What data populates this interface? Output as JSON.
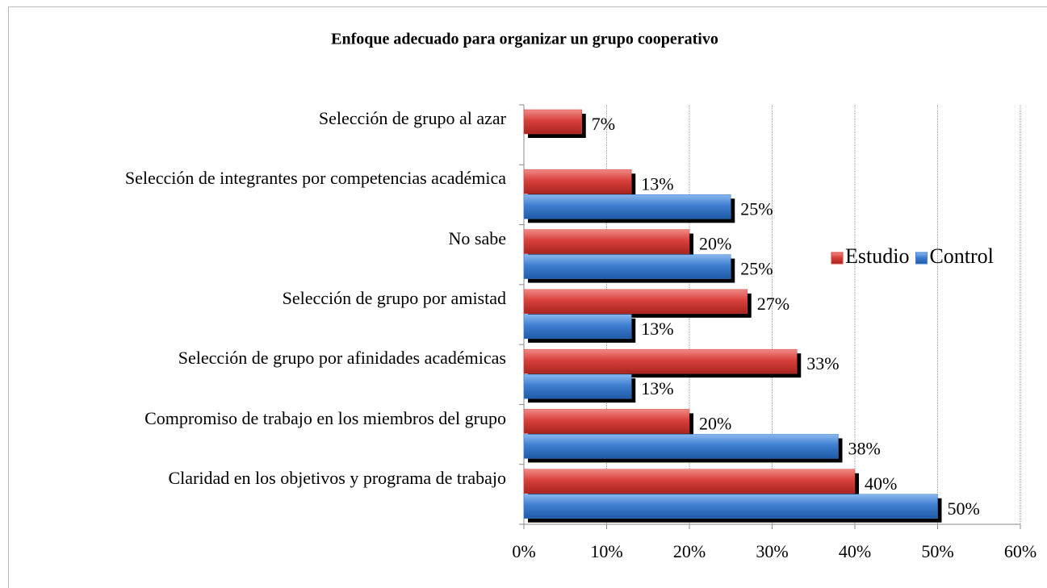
{
  "chart_data": {
    "type": "hbar",
    "title": "Enfoque adecuado para organizar un grupo cooperativo",
    "categories": [
      "Selección de grupo al azar",
      "Selección de integrantes por competencias académica",
      "No sabe",
      "Selección de grupo por amistad",
      "Selección de grupo por afinidades académicas",
      "Compromiso de trabajo en los miembros del grupo",
      "Claridad en los objetivos  y programa de trabajo"
    ],
    "series": [
      {
        "name": "Estudio",
        "color": "#d9403c",
        "values": [
          7,
          13,
          20,
          27,
          33,
          20,
          40
        ],
        "value_labels": [
          "7%",
          "13%",
          "20%",
          "27%",
          "33%",
          "20%",
          "40%"
        ]
      },
      {
        "name": "Control",
        "color": "#3f7fd0",
        "values": [
          null,
          25,
          25,
          13,
          13,
          38,
          50
        ],
        "value_labels": [
          null,
          "25%",
          "25%",
          "13%",
          "13%",
          "38%",
          "50%"
        ]
      }
    ],
    "xlim": [
      0,
      60
    ],
    "xticks": [
      {
        "value": 0,
        "label": "0%"
      },
      {
        "value": 10,
        "label": "10%"
      },
      {
        "value": 20,
        "label": "20%"
      },
      {
        "value": 30,
        "label": "30%"
      },
      {
        "value": 40,
        "label": "40%"
      },
      {
        "value": 50,
        "label": "50%"
      },
      {
        "value": 60,
        "label": "60%"
      }
    ],
    "grid": true,
    "legend": "right"
  }
}
